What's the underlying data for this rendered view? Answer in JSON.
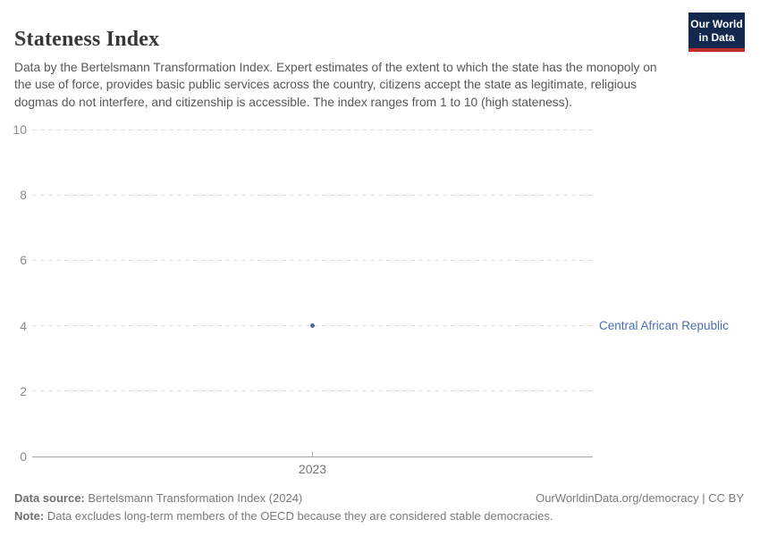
{
  "header": {
    "title": "Stateness Index",
    "subtitle": "Data by the Bertelsmann Transformation Index. Expert estimates of the extent to which the state has the monopoly on the use of force, provides basic public services across the country, citizens accept the state as legitimate, religious dogmas do not interfere, and citizenship is accessible. The index ranges from 1 to 10 (high stateness).",
    "logo": {
      "line1": "Our World",
      "line2": "in Data",
      "bg_color": "#12294d",
      "accent_color": "#be2d28"
    }
  },
  "chart_data": {
    "type": "scatter",
    "title": "Stateness Index",
    "series": [
      {
        "name": "Central African Republic",
        "color": "#4c6a9c",
        "label_color": "#4d6fae",
        "points": [
          {
            "x": 2023,
            "y": 4
          }
        ]
      }
    ],
    "x_ticks": [
      "2023"
    ],
    "y_ticks": [
      0,
      2,
      4,
      6,
      8,
      10
    ],
    "ylim": [
      0,
      10
    ],
    "xlabel": "",
    "ylabel": "",
    "grid": true,
    "gridline_color": "#dcdcdc",
    "axis_color": "#a3a3a3",
    "tick_label_color": "#8b8b8b"
  },
  "footer": {
    "source_label": "Data source:",
    "source_text": " Bertelsmann Transformation Index (2024)",
    "link_text": "OurWorldinData.org/democracy | CC BY",
    "note_label": "Note:",
    "note_text": " Data excludes long-term members of the OECD because they are considered stable democracies."
  }
}
